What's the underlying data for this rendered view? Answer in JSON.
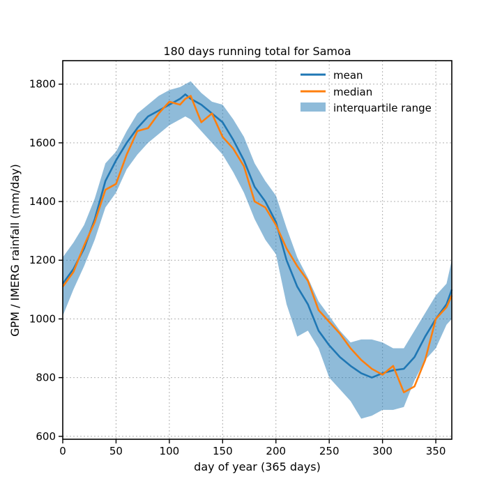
{
  "chart_data": {
    "type": "line",
    "title": "180 days running total for Samoa",
    "xlabel": "day of year (365 days)",
    "ylabel": "GPM / IMERG rainfall (mm/day)",
    "xlim": [
      0,
      365
    ],
    "ylim": [
      590,
      1880
    ],
    "xticks": [
      0,
      50,
      100,
      150,
      200,
      250,
      300,
      350
    ],
    "yticks": [
      600,
      800,
      1000,
      1200,
      1400,
      1600,
      1800
    ],
    "grid": true,
    "legend_position": "top-right",
    "legend": [
      "mean",
      "median",
      "interquartile range"
    ],
    "colors": {
      "mean": "#1f77b4",
      "median": "#ff7f0e",
      "iqr": "#1f77b4"
    },
    "x": [
      0,
      10,
      20,
      30,
      40,
      50,
      60,
      70,
      80,
      90,
      100,
      110,
      115,
      120,
      130,
      140,
      150,
      160,
      170,
      180,
      190,
      200,
      210,
      220,
      230,
      240,
      250,
      260,
      270,
      280,
      290,
      300,
      310,
      320,
      330,
      340,
      350,
      360,
      365
    ],
    "series": [
      {
        "name": "mean",
        "values": [
          1120,
          1170,
          1240,
          1340,
          1470,
          1540,
          1600,
          1650,
          1690,
          1710,
          1730,
          1750,
          1765,
          1750,
          1730,
          1700,
          1670,
          1610,
          1540,
          1450,
          1400,
          1330,
          1200,
          1110,
          1050,
          960,
          910,
          870,
          840,
          815,
          800,
          815,
          825,
          830,
          870,
          940,
          1000,
          1050,
          1100
        ]
      },
      {
        "name": "median",
        "values": [
          1110,
          1160,
          1250,
          1330,
          1440,
          1460,
          1560,
          1640,
          1650,
          1700,
          1740,
          1730,
          1750,
          1760,
          1670,
          1700,
          1620,
          1580,
          1520,
          1400,
          1380,
          1320,
          1240,
          1180,
          1130,
          1030,
          990,
          950,
          900,
          860,
          830,
          810,
          840,
          750,
          770,
          860,
          1000,
          1040,
          1080
        ]
      },
      {
        "name": "interquartile range",
        "lower": [
          1010,
          1100,
          1180,
          1270,
          1380,
          1430,
          1510,
          1560,
          1600,
          1630,
          1660,
          1680,
          1690,
          1680,
          1640,
          1600,
          1560,
          1500,
          1430,
          1340,
          1270,
          1220,
          1050,
          940,
          960,
          900,
          800,
          760,
          720,
          660,
          670,
          690,
          690,
          700,
          790,
          860,
          900,
          980,
          1000
        ],
        "upper": [
          1210,
          1260,
          1320,
          1410,
          1530,
          1570,
          1640,
          1700,
          1730,
          1760,
          1780,
          1790,
          1800,
          1810,
          1770,
          1740,
          1730,
          1680,
          1620,
          1530,
          1470,
          1420,
          1310,
          1210,
          1140,
          1060,
          1010,
          960,
          920,
          930,
          930,
          920,
          900,
          900,
          960,
          1020,
          1080,
          1120,
          1200
        ]
      }
    ]
  }
}
